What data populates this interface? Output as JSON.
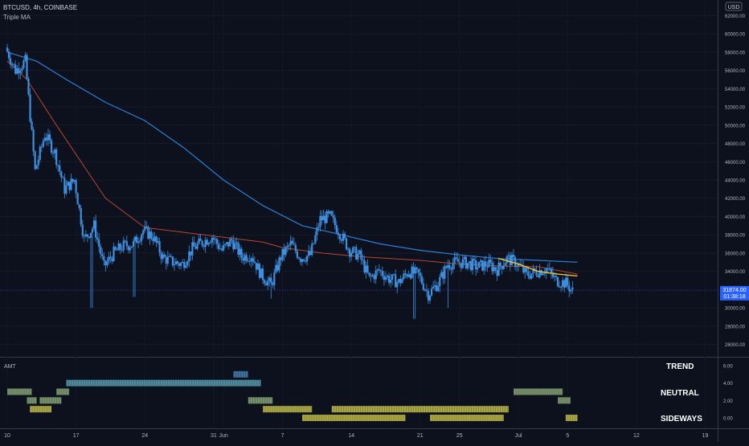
{
  "header": {
    "symbol_line": "BTCUSD, 4h, COINBASE",
    "indicator_name": "Triple MA",
    "currency_badge": "USD"
  },
  "price_pane": {
    "last_price": "31874.00",
    "countdown": "01:38:18"
  },
  "indicator_pane": {
    "name": "AMT",
    "labels": [
      "TREND",
      "NEUTRAL",
      "SIDEWAYS"
    ]
  },
  "colors": {
    "background": "#0c111d",
    "candle": "#3f8fe0",
    "ma_fast": "#f2c230",
    "ma_mid": "#b8472f",
    "ma_slow": "#2e7fd6",
    "bar_trend": "#5a9fb0",
    "bar_trend_highlight": "#4a7fb0",
    "bar_neutral": "#8aa878",
    "bar_sideways": "#c6bf4a",
    "price_badge": "#2962ff"
  },
  "chart_data": [
    {
      "type": "candlestick",
      "title": "BTCUSD, 4h, COINBASE",
      "ylim": [
        25000,
        63000
      ],
      "y_ticks": [
        "62000.00",
        "60000.00",
        "58000.00",
        "56000.00",
        "54000.00",
        "52000.00",
        "50000.00",
        "48000.00",
        "46000.00",
        "44000.00",
        "42000.00",
        "40000.00",
        "38000.00",
        "36000.00",
        "34000.00",
        "32000.00",
        "30000.00",
        "28000.00",
        "26000.00"
      ],
      "x_tick_labels": [
        "10",
        "17",
        "24",
        "31",
        "Jun",
        "7",
        "14",
        "21",
        "25",
        "Jul",
        "5",
        "12",
        "19"
      ],
      "x_ticks_day": [
        0,
        7,
        14,
        21,
        22,
        28,
        35,
        42,
        46,
        52,
        57,
        64,
        71
      ],
      "price_path": [
        [
          0,
          58500
        ],
        [
          1,
          56000
        ],
        [
          2,
          57000
        ],
        [
          3,
          45000
        ],
        [
          4,
          49000
        ],
        [
          5,
          47000
        ],
        [
          6,
          43000
        ],
        [
          7,
          44000
        ],
        [
          8,
          37500
        ],
        [
          9,
          39000
        ],
        [
          10,
          34500
        ],
        [
          11,
          36000
        ],
        [
          12,
          36800
        ],
        [
          13,
          37000
        ],
        [
          14,
          38500
        ],
        [
          15,
          37800
        ],
        [
          16,
          35500
        ],
        [
          17,
          35000
        ],
        [
          18,
          34800
        ],
        [
          19,
          36500
        ],
        [
          20,
          37200
        ],
        [
          21,
          37800
        ],
        [
          22,
          36300
        ],
        [
          23,
          37400
        ],
        [
          24,
          35600
        ],
        [
          25,
          35800
        ],
        [
          26,
          33600
        ],
        [
          27,
          32500
        ],
        [
          28,
          35600
        ],
        [
          29,
          37000
        ],
        [
          30,
          35500
        ],
        [
          31,
          35800
        ],
        [
          32,
          39700
        ],
        [
          33,
          40000
        ],
        [
          34,
          38200
        ],
        [
          35,
          36300
        ],
        [
          36,
          35700
        ],
        [
          37,
          33200
        ],
        [
          38,
          34100
        ],
        [
          39,
          33200
        ],
        [
          40,
          32800
        ],
        [
          41,
          34000
        ],
        [
          42,
          33600
        ],
        [
          43,
          31500
        ],
        [
          44,
          32700
        ],
        [
          45,
          34800
        ],
        [
          46,
          35000
        ],
        [
          47,
          34900
        ],
        [
          48,
          34500
        ],
        [
          49,
          34800
        ],
        [
          50,
          34200
        ],
        [
          51,
          35400
        ],
        [
          52,
          34900
        ],
        [
          53,
          33600
        ],
        [
          54,
          34000
        ],
        [
          55,
          34300
        ],
        [
          56,
          33000
        ],
        [
          57,
          32700
        ],
        [
          57.6,
          31874
        ]
      ],
      "ma_fast": [
        [
          50,
          35400
        ],
        [
          52,
          34800
        ],
        [
          54,
          34000
        ],
        [
          56,
          33700
        ],
        [
          58,
          33500
        ]
      ],
      "ma_mid": [
        [
          0,
          57000
        ],
        [
          2,
          55000
        ],
        [
          5,
          50000
        ],
        [
          10,
          42000
        ],
        [
          14,
          38800
        ],
        [
          20,
          38000
        ],
        [
          26,
          37200
        ],
        [
          28,
          36600
        ],
        [
          32,
          36000
        ],
        [
          36,
          35600
        ],
        [
          42,
          35200
        ],
        [
          46,
          34800
        ],
        [
          50,
          34600
        ],
        [
          54,
          34500
        ],
        [
          56,
          34100
        ],
        [
          58,
          33700
        ]
      ],
      "ma_slow": [
        [
          0,
          58000
        ],
        [
          3,
          57000
        ],
        [
          6,
          55000
        ],
        [
          10,
          52500
        ],
        [
          14,
          50500
        ],
        [
          18,
          47500
        ],
        [
          22,
          44000
        ],
        [
          26,
          41200
        ],
        [
          30,
          39000
        ],
        [
          34,
          38000
        ],
        [
          38,
          37000
        ],
        [
          42,
          36300
        ],
        [
          46,
          35800
        ],
        [
          50,
          35400
        ],
        [
          54,
          35200
        ],
        [
          58,
          35000
        ]
      ],
      "ma_names": [],
      "last_price": 31874
    },
    {
      "type": "heatmap",
      "title": "AMT",
      "y_ticks": [
        "6.00",
        "4.00",
        "2.00",
        "0.00"
      ],
      "rows": [
        {
          "level": 5,
          "segments": [
            [
              23,
              24.5,
              "bar_trend_highlight"
            ]
          ]
        },
        {
          "level": 4,
          "segments": [
            [
              6,
              25.8,
              "bar_trend"
            ]
          ]
        },
        {
          "level": 3,
          "segments": [
            [
              0,
              2.5,
              "bar_neutral"
            ],
            [
              5,
              6.3,
              "bar_neutral"
            ],
            [
              51.5,
              56.5,
              "bar_neutral"
            ]
          ]
        },
        {
          "level": 2,
          "segments": [
            [
              2,
              3,
              "bar_neutral"
            ],
            [
              3.3,
              5.5,
              "bar_neutral"
            ],
            [
              24.5,
              27,
              "bar_neutral"
            ],
            [
              56,
              57.3,
              "bar_neutral"
            ]
          ]
        },
        {
          "level": 1,
          "segments": [
            [
              2.3,
              4.5,
              "bar_sideways"
            ],
            [
              26,
              31,
              "bar_sideways"
            ],
            [
              33,
              51,
              "bar_sideways"
            ]
          ]
        },
        {
          "level": 0,
          "segments": [
            [
              30,
              40.5,
              "bar_sideways"
            ],
            [
              43,
              50.5,
              "bar_sideways"
            ],
            [
              56.8,
              58,
              "bar_sideways"
            ]
          ]
        }
      ]
    }
  ]
}
